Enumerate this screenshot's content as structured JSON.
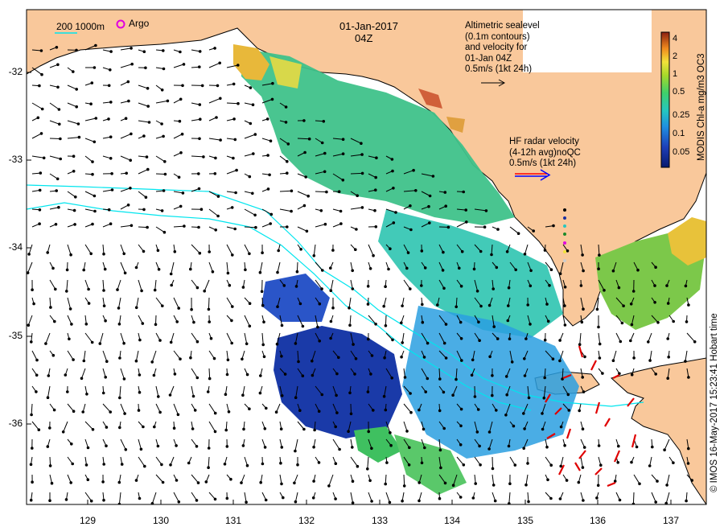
{
  "header": {
    "date": "01-Jan-2017",
    "time": "04Z"
  },
  "legend": {
    "isobath_label": "200  1000m",
    "argo_label": "Argo"
  },
  "altimetry_note": [
    "Altimetric sealevel",
    "(0.1m contours)",
    "and velocity for",
    "01-Jan 04Z",
    "0.5m/s (1kt 24h)"
  ],
  "hf_radar_note": [
    "HF radar velocity",
    "(4-12h avg)noQC",
    "0.5m/s (1kt 24h)"
  ],
  "colorbar": {
    "title": "MODIS Chl-a mg/m3 OC3",
    "ticks": [
      "4",
      "2",
      "1",
      "0.5",
      "0.25",
      "0.1",
      "0.05"
    ]
  },
  "credit": "© IMOS 16-May-2017 15:23:41 Hobart time",
  "axes": {
    "y_ticks": [
      "-32",
      "-33",
      "-34",
      "-35",
      "-36"
    ],
    "x_ticks": [
      "129",
      "130",
      "131",
      "132",
      "133",
      "134",
      "135",
      "136",
      "137"
    ]
  },
  "colors": {
    "land": "#f9c89b",
    "isobath": "#00e5ee",
    "argo": "#e000e0",
    "hf_radar_arrow_red": "#ff0000",
    "hf_radar_arrow_blue": "#0000ff",
    "hf_vector": "#e00000"
  }
}
